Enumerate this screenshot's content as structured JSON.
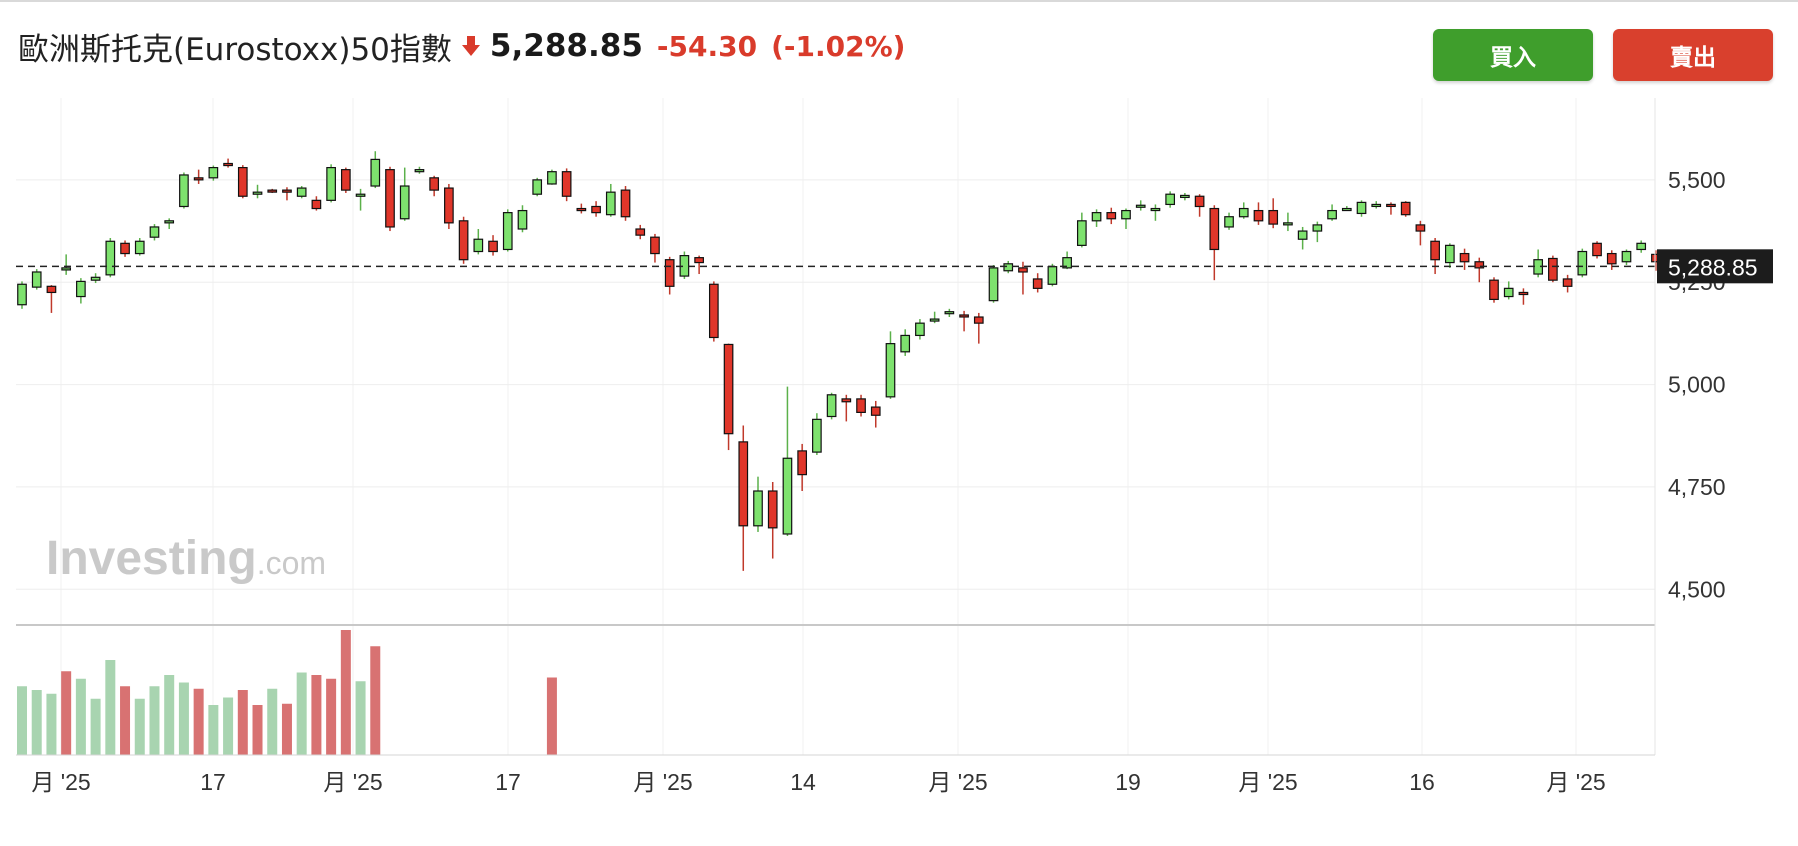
{
  "header": {
    "title": "歐洲斯托克(Eurostoxx)50指數",
    "price": "5,288.85",
    "change": "-54.30",
    "change_pct": "(-1.02%)",
    "direction_icon": "arrow-down-icon"
  },
  "buttons": {
    "buy": "買入",
    "sell": "賣出"
  },
  "colors": {
    "up": "#7ee26e",
    "down": "#e0362a",
    "vol_up": "#a8d4b0",
    "vol_down": "#d87272",
    "buy": "#3f9e2c",
    "sell": "#d9402d"
  },
  "watermark": {
    "brand": "Investing",
    "suffix": ".com"
  },
  "chart_data": {
    "type": "candlestick",
    "title": "",
    "ylim": [
      4420,
      5700
    ],
    "y_ticks": [
      4500,
      4750,
      5000,
      5250,
      5500
    ],
    "y_tick_labels": [
      "4,500",
      "4,750",
      "5,000",
      "5,250",
      "5,500"
    ],
    "last_price": 5288.85,
    "last_price_label": "5,288.85",
    "x_tick_labels": [
      "月 '25",
      "17",
      "月 '25",
      "17",
      "月 '25",
      "14",
      "月 '25",
      "19",
      "月 '25",
      "16",
      "月 '25"
    ],
    "grid": true,
    "candles": [
      [
        5195,
        5245,
        5185,
        5252
      ],
      [
        5238,
        5275,
        5232,
        5282
      ],
      [
        5240,
        5225,
        5175,
        5243
      ],
      [
        5280,
        5285,
        5268,
        5318
      ],
      [
        5215,
        5252,
        5198,
        5260
      ],
      [
        5255,
        5262,
        5248,
        5272
      ],
      [
        5268,
        5350,
        5262,
        5358
      ],
      [
        5345,
        5320,
        5312,
        5352
      ],
      [
        5320,
        5350,
        5315,
        5358
      ],
      [
        5360,
        5385,
        5352,
        5392
      ],
      [
        5395,
        5400,
        5380,
        5406
      ],
      [
        5435,
        5512,
        5430,
        5518
      ],
      [
        5505,
        5500,
        5490,
        5525
      ],
      [
        5505,
        5530,
        5498,
        5535
      ],
      [
        5540,
        5535,
        5530,
        5552
      ],
      [
        5530,
        5460,
        5455,
        5536
      ],
      [
        5465,
        5470,
        5455,
        5488
      ],
      [
        5475,
        5472,
        5468,
        5478
      ],
      [
        5475,
        5470,
        5450,
        5482
      ],
      [
        5460,
        5480,
        5455,
        5485
      ],
      [
        5450,
        5430,
        5425,
        5460
      ],
      [
        5450,
        5530,
        5445,
        5538
      ],
      [
        5525,
        5475,
        5468,
        5530
      ],
      [
        5460,
        5465,
        5425,
        5478
      ],
      [
        5485,
        5550,
        5480,
        5570
      ],
      [
        5525,
        5385,
        5375,
        5532
      ],
      [
        5405,
        5485,
        5400,
        5530
      ],
      [
        5520,
        5525,
        5515,
        5532
      ],
      [
        5505,
        5475,
        5460,
        5510
      ],
      [
        5480,
        5395,
        5380,
        5490
      ],
      [
        5400,
        5305,
        5295,
        5410
      ],
      [
        5325,
        5355,
        5318,
        5380
      ],
      [
        5350,
        5325,
        5315,
        5365
      ],
      [
        5330,
        5420,
        5325,
        5428
      ],
      [
        5380,
        5425,
        5372,
        5438
      ],
      [
        5465,
        5500,
        5460,
        5505
      ],
      [
        5490,
        5520,
        5488,
        5525
      ],
      [
        5520,
        5460,
        5448,
        5528
      ],
      [
        5430,
        5425,
        5418,
        5442
      ],
      [
        5435,
        5420,
        5410,
        5448
      ],
      [
        5415,
        5470,
        5410,
        5490
      ],
      [
        5475,
        5410,
        5400,
        5485
      ],
      [
        5380,
        5365,
        5355,
        5390
      ],
      [
        5360,
        5320,
        5298,
        5368
      ],
      [
        5305,
        5240,
        5220,
        5312
      ],
      [
        5265,
        5315,
        5258,
        5325
      ],
      [
        5310,
        5298,
        5270,
        5315
      ],
      [
        5245,
        5115,
        5105,
        5252
      ],
      [
        5098,
        4880,
        4840,
        5100
      ],
      [
        4860,
        4655,
        4545,
        4900
      ],
      [
        4655,
        4740,
        4640,
        4775
      ],
      [
        4740,
        4650,
        4575,
        4762
      ],
      [
        4635,
        4820,
        4630,
        4995
      ],
      [
        4838,
        4780,
        4740,
        4855
      ],
      [
        4835,
        4915,
        4828,
        4930
      ],
      [
        4922,
        4975,
        4915,
        4980
      ],
      [
        4965,
        4958,
        4910,
        4975
      ],
      [
        4965,
        4932,
        4922,
        4975
      ],
      [
        4945,
        4925,
        4895,
        4960
      ],
      [
        4970,
        5100,
        4965,
        5130
      ],
      [
        5080,
        5120,
        5070,
        5135
      ],
      [
        5120,
        5150,
        5110,
        5160
      ],
      [
        5160,
        5160,
        5150,
        5178
      ],
      [
        5175,
        5178,
        5165,
        5185
      ],
      [
        5170,
        5168,
        5130,
        5180
      ],
      [
        5165,
        5150,
        5100,
        5175
      ],
      [
        5205,
        5285,
        5200,
        5292
      ],
      [
        5278,
        5295,
        5272,
        5302
      ],
      [
        5285,
        5275,
        5220,
        5300
      ],
      [
        5258,
        5235,
        5225,
        5272
      ],
      [
        5245,
        5288,
        5240,
        5295
      ],
      [
        5285,
        5310,
        5282,
        5325
      ],
      [
        5340,
        5400,
        5335,
        5420
      ],
      [
        5400,
        5420,
        5385,
        5428
      ],
      [
        5420,
        5405,
        5392,
        5432
      ],
      [
        5405,
        5425,
        5380,
        5430
      ],
      [
        5435,
        5438,
        5425,
        5450
      ],
      [
        5430,
        5430,
        5400,
        5440
      ],
      [
        5440,
        5465,
        5432,
        5472
      ],
      [
        5462,
        5462,
        5450,
        5468
      ],
      [
        5460,
        5435,
        5410,
        5465
      ],
      [
        5430,
        5330,
        5255,
        5438
      ],
      [
        5385,
        5410,
        5378,
        5420
      ],
      [
        5410,
        5430,
        5405,
        5445
      ],
      [
        5425,
        5400,
        5390,
        5445
      ],
      [
        5425,
        5392,
        5382,
        5455
      ],
      [
        5395,
        5395,
        5375,
        5420
      ],
      [
        5355,
        5375,
        5330,
        5385
      ],
      [
        5375,
        5390,
        5348,
        5398
      ],
      [
        5405,
        5425,
        5400,
        5440
      ],
      [
        5430,
        5430,
        5425,
        5436
      ],
      [
        5418,
        5445,
        5410,
        5450
      ],
      [
        5440,
        5440,
        5430,
        5448
      ],
      [
        5440,
        5438,
        5415,
        5445
      ],
      [
        5445,
        5415,
        5410,
        5448
      ],
      [
        5390,
        5375,
        5340,
        5400
      ],
      [
        5350,
        5305,
        5270,
        5358
      ],
      [
        5298,
        5340,
        5285,
        5345
      ],
      [
        5320,
        5300,
        5280,
        5332
      ],
      [
        5300,
        5285,
        5250,
        5310
      ],
      [
        5255,
        5208,
        5200,
        5262
      ],
      [
        5215,
        5235,
        5208,
        5252
      ],
      [
        5225,
        5220,
        5195,
        5235
      ],
      [
        5270,
        5305,
        5262,
        5330
      ],
      [
        5308,
        5255,
        5250,
        5315
      ],
      [
        5258,
        5240,
        5225,
        5268
      ],
      [
        5268,
        5325,
        5262,
        5332
      ],
      [
        5345,
        5315,
        5308,
        5350
      ],
      [
        5320,
        5295,
        5280,
        5328
      ],
      [
        5300,
        5325,
        5292,
        5330
      ],
      [
        5330,
        5345,
        5322,
        5352
      ],
      [
        5318,
        5300,
        5278,
        5328
      ]
    ],
    "volume": [
      {
        "i": 0,
        "v": 0.55,
        "up": true
      },
      {
        "i": 1,
        "v": 0.52,
        "up": true
      },
      {
        "i": 2,
        "v": 0.49,
        "up": true
      },
      {
        "i": 3,
        "v": 0.67,
        "up": false
      },
      {
        "i": 4,
        "v": 0.61,
        "up": true
      },
      {
        "i": 5,
        "v": 0.45,
        "up": true
      },
      {
        "i": 6,
        "v": 0.76,
        "up": true
      },
      {
        "i": 7,
        "v": 0.55,
        "up": false
      },
      {
        "i": 8,
        "v": 0.45,
        "up": true
      },
      {
        "i": 9,
        "v": 0.55,
        "up": true
      },
      {
        "i": 10,
        "v": 0.64,
        "up": true
      },
      {
        "i": 11,
        "v": 0.58,
        "up": true
      },
      {
        "i": 12,
        "v": 0.53,
        "up": false
      },
      {
        "i": 13,
        "v": 0.4,
        "up": true
      },
      {
        "i": 14,
        "v": 0.46,
        "up": true
      },
      {
        "i": 15,
        "v": 0.52,
        "up": false
      },
      {
        "i": 16,
        "v": 0.4,
        "up": false
      },
      {
        "i": 17,
        "v": 0.53,
        "up": true
      },
      {
        "i": 18,
        "v": 0.41,
        "up": false
      },
      {
        "i": 19,
        "v": 0.66,
        "up": true
      },
      {
        "i": 20,
        "v": 0.64,
        "up": false
      },
      {
        "i": 21,
        "v": 0.61,
        "up": false
      },
      {
        "i": 22,
        "v": 1.0,
        "up": false
      },
      {
        "i": 23,
        "v": 0.59,
        "up": true
      },
      {
        "i": 24,
        "v": 0.87,
        "up": false
      },
      {
        "i": 36,
        "v": 0.62,
        "up": false
      }
    ]
  }
}
